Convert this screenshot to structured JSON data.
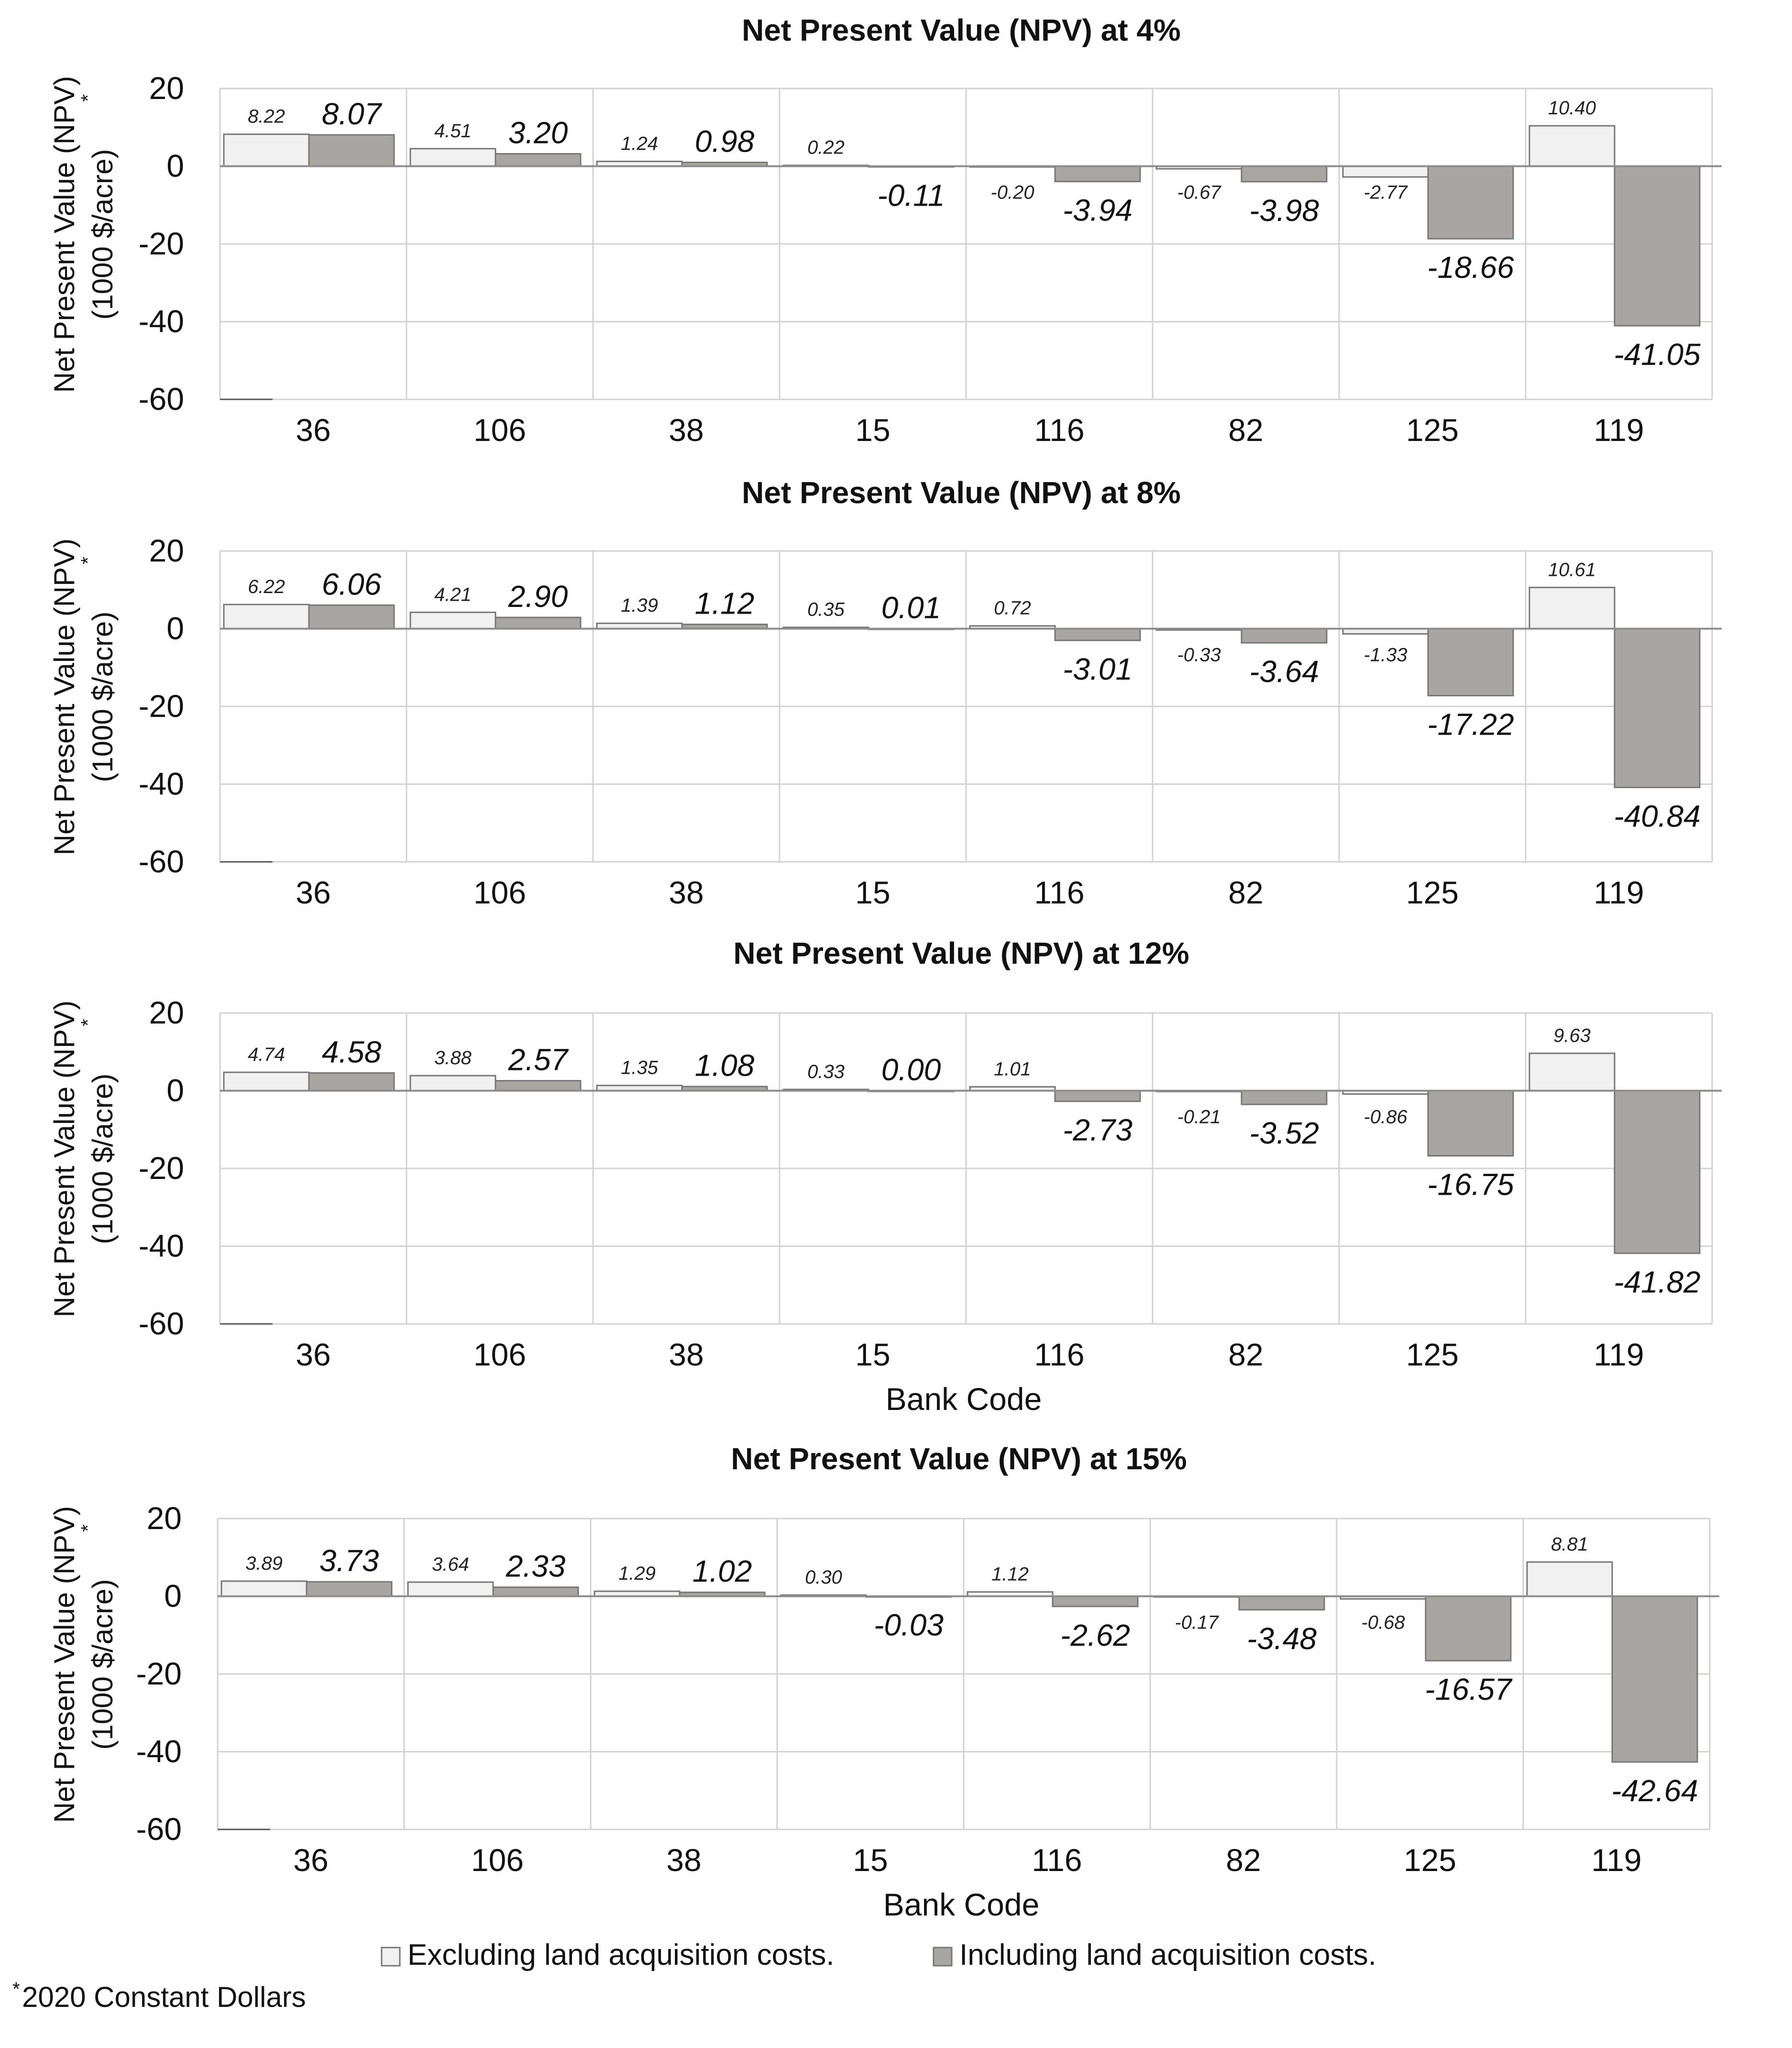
{
  "colors": {
    "excluding": "#f1f1f1",
    "including": "#a8a6a3",
    "bar_stroke": "#777777",
    "grid": "#d2d2d2",
    "zero_line": "#8c8c8c"
  },
  "legend": {
    "excluding": "Excluding land acquisition costs.",
    "including": "Including land acquisition costs."
  },
  "footnote": {
    "mark": "*",
    "text": "2020 Constant Dollars"
  },
  "chart_data": [
    {
      "type": "bar",
      "title": "Net Present Value (NPV) at 4%",
      "ylabel_line1": "Net Present Value (NPV)",
      "ylabel_line2": "(1000 $/acre)",
      "ylabel_mark": "*",
      "xlabel": "",
      "categories": [
        "36",
        "106",
        "38",
        "15",
        "116",
        "82",
        "125",
        "119"
      ],
      "ylim": [
        -60,
        20
      ],
      "yticks": [
        20,
        0,
        -20,
        -40,
        -60
      ],
      "series": [
        {
          "name": "Excluding land acquisition costs.",
          "values": [
            8.22,
            4.51,
            1.24,
            0.22,
            -0.2,
            -0.67,
            -2.77,
            10.4
          ],
          "labels": [
            "8.22",
            "4.51",
            "1.24",
            "0.22",
            "-0.20",
            "-0.67",
            "-2.77",
            "10.40"
          ]
        },
        {
          "name": "Including land acquisition costs.",
          "values": [
            8.07,
            3.2,
            0.98,
            -0.11,
            -3.94,
            -3.98,
            -18.66,
            -41.05
          ],
          "labels": [
            "8.07",
            "3.20",
            "0.98",
            "-0.11",
            "-3.94",
            "-3.98",
            "-18.66",
            "-41.05"
          ]
        }
      ]
    },
    {
      "type": "bar",
      "title": "Net Present Value (NPV) at 8%",
      "ylabel_line1": "Net Present Value (NPV)",
      "ylabel_line2": "(1000 $/acre)",
      "ylabel_mark": "*",
      "xlabel": "",
      "categories": [
        "36",
        "106",
        "38",
        "15",
        "116",
        "82",
        "125",
        "119"
      ],
      "ylim": [
        -60,
        20
      ],
      "yticks": [
        20,
        0,
        -20,
        -40,
        -60
      ],
      "series": [
        {
          "name": "Excluding land acquisition costs.",
          "values": [
            6.22,
            4.21,
            1.39,
            0.35,
            0.72,
            -0.33,
            -1.33,
            10.61
          ],
          "labels": [
            "6.22",
            "4.21",
            "1.39",
            "0.35",
            "0.72",
            "-0.33",
            "-1.33",
            "10.61"
          ]
        },
        {
          "name": "Including land acquisition costs.",
          "values": [
            6.06,
            2.9,
            1.12,
            0.01,
            -3.01,
            -3.64,
            -17.22,
            -40.84
          ],
          "labels": [
            "6.06",
            "2.90",
            "1.12",
            "0.01",
            "-3.01",
            "-3.64",
            "-17.22",
            "-40.84"
          ]
        }
      ]
    },
    {
      "type": "bar",
      "title": "Net Present Value (NPV) at 12%",
      "ylabel_line1": "Net Present Value (NPV)",
      "ylabel_line2": "(1000 $/acre)",
      "ylabel_mark": "*",
      "xlabel": "Bank Code",
      "categories": [
        "36",
        "106",
        "38",
        "15",
        "116",
        "82",
        "125",
        "119"
      ],
      "ylim": [
        -60,
        20
      ],
      "yticks": [
        20,
        0,
        -20,
        -40,
        -60
      ],
      "series": [
        {
          "name": "Excluding land acquisition costs.",
          "values": [
            4.74,
            3.88,
            1.35,
            0.33,
            1.01,
            -0.21,
            -0.86,
            9.63
          ],
          "labels": [
            "4.74",
            "3.88",
            "1.35",
            "0.33",
            "1.01",
            "-0.21",
            "-0.86",
            "9.63"
          ]
        },
        {
          "name": "Including land acquisition costs.",
          "values": [
            4.58,
            2.57,
            1.08,
            0.0,
            -2.73,
            -3.52,
            -16.75,
            -41.82
          ],
          "labels": [
            "4.58",
            "2.57",
            "1.08",
            "0.00",
            "-2.73",
            "-3.52",
            "-16.75",
            "-41.82"
          ]
        }
      ]
    },
    {
      "type": "bar",
      "title": "Net Present Value (NPV) at 15%",
      "ylabel_line1": "Net Present Value (NPV)",
      "ylabel_line2": "(1000 $/acre)",
      "ylabel_mark": "*",
      "xlabel": "Bank Code",
      "categories": [
        "36",
        "106",
        "38",
        "15",
        "116",
        "82",
        "125",
        "119"
      ],
      "ylim": [
        -60,
        20
      ],
      "yticks": [
        20,
        0,
        -20,
        -40,
        -60
      ],
      "series": [
        {
          "name": "Excluding land acquisition costs.",
          "values": [
            3.89,
            3.64,
            1.29,
            0.3,
            1.12,
            -0.17,
            -0.68,
            8.81
          ],
          "labels": [
            "3.89",
            "3.64",
            "1.29",
            "0.30",
            "1.12",
            "-0.17",
            "-0.68",
            "8.81"
          ]
        },
        {
          "name": "Including land acquisition costs.",
          "values": [
            3.73,
            2.33,
            1.02,
            -0.03,
            -2.62,
            -3.48,
            -16.57,
            -42.64
          ],
          "labels": [
            "3.73",
            "2.33",
            "1.02",
            "-0.03",
            "-2.62",
            "-3.48",
            "-16.57",
            "-42.64"
          ]
        }
      ]
    }
  ]
}
